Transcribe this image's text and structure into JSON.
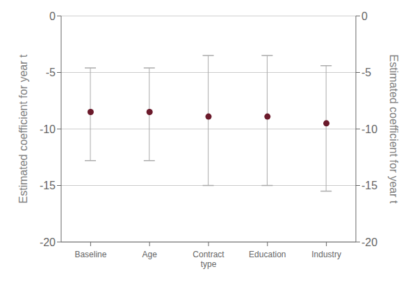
{
  "chart_data": {
    "type": "scatter",
    "categories": [
      "Baseline",
      "Age",
      "Contract\ntype",
      "Education",
      "Industry"
    ],
    "values": [
      -8.5,
      -8.5,
      -8.9,
      -8.9,
      -9.5
    ],
    "ci_upper": [
      -4.6,
      -4.6,
      -3.5,
      -3.5,
      -4.4
    ],
    "ci_lower": [
      -12.8,
      -12.8,
      -15.0,
      -15.0,
      -15.5
    ],
    "color": "#6b1a2b",
    "ylabel": "Estimated coefficient for year t",
    "ylim": [
      -20,
      0
    ],
    "yticks": [
      0,
      -5,
      -10,
      -15,
      -20
    ],
    "y2label": "Estimated coefficient for year t",
    "y2lim": [
      -20,
      0
    ],
    "y2ticks": [
      0,
      -5,
      -10,
      -15,
      -20
    ],
    "grid": true
  }
}
